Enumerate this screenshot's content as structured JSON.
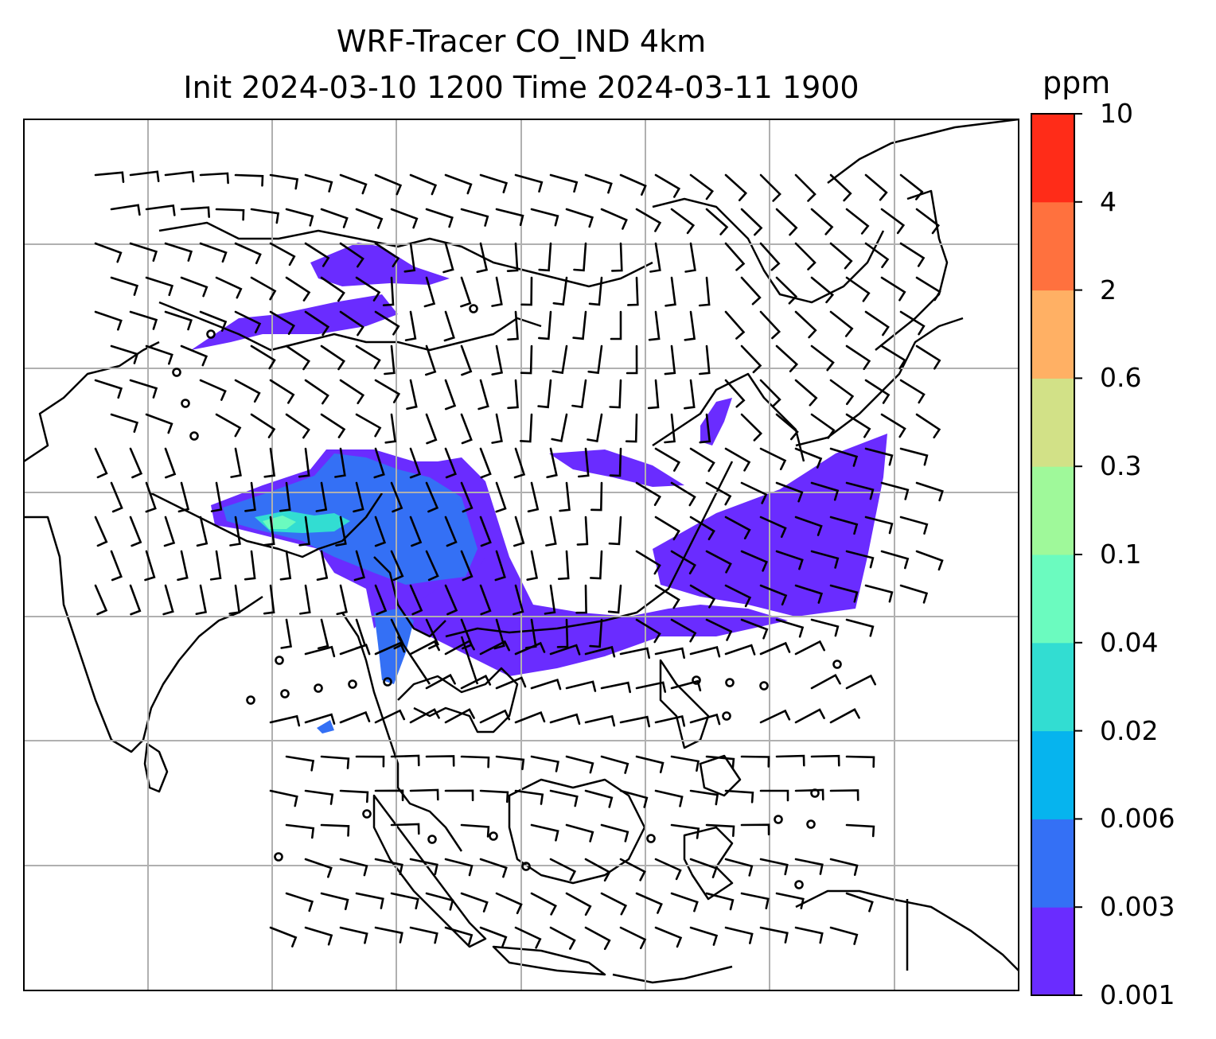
{
  "title": {
    "line1": "WRF-Tracer CO_IND 4km",
    "line2": "Init 2024-03-10 1200 Time 2024-03-11 1900"
  },
  "colorbar": {
    "unit": "ppm",
    "ticks": [
      "0.001",
      "0.003",
      "0.006",
      "0.02",
      "0.04",
      "0.1",
      "0.3",
      "0.6",
      "2",
      "4",
      "10"
    ],
    "colors": [
      "#6a2cff",
      "#3470f5",
      "#06b4ee",
      "#32ddd2",
      "#6bfbbf",
      "#9ff99a",
      "#d2e187",
      "#ffb064",
      "#ff713e",
      "#ff2c18"
    ]
  },
  "chart_data": {
    "type": "heatmap",
    "title": "WRF-Tracer CO_IND 4km / Init 2024-03-10 1200 Time 2024-03-11 1900",
    "variable": "CO_IND tracer concentration",
    "unit": "ppm",
    "levels": [
      0.001,
      0.003,
      0.006,
      0.02,
      0.04,
      0.1,
      0.3,
      0.6,
      2,
      4,
      10
    ],
    "grid": true,
    "overlays": [
      "coastlines",
      "country borders",
      "wind barbs"
    ]
  }
}
